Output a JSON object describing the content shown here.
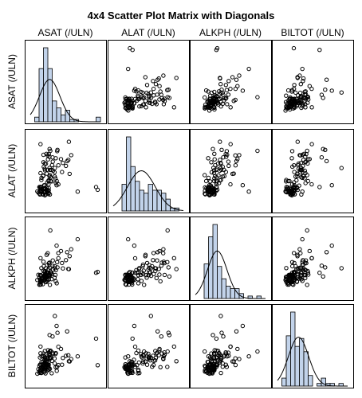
{
  "chart_data": {
    "type": "scatter",
    "title": "4x4 Scatter Plot Matrix with Diagonals",
    "variables": [
      "ASAT (/ULN)",
      "ALAT (/ULN)",
      "ALKPH (/ULN)",
      "BILTOT (/ULN)"
    ],
    "diagonal": "histogram with normal density curve",
    "ranges": [
      [
        0,
        4
      ],
      [
        0,
        4
      ],
      [
        0,
        4
      ],
      [
        0,
        4
      ]
    ],
    "observations": [
      [
        0.52,
        0.74,
        0.54,
        0.9
      ],
      [
        0.6,
        0.89,
        0.55,
        0.65
      ],
      [
        0.64,
        0.81,
        0.91,
        0.77
      ],
      [
        0.86,
        1.03,
        0.7,
        1.11
      ],
      [
        1.04,
        1.25,
        1.2,
        0.84
      ],
      [
        0.93,
        1.08,
        1.21,
        1.0
      ],
      [
        1.22,
        1.41,
        0.85,
        0.49
      ],
      [
        0.88,
        0.7,
        1.07,
        0.98
      ],
      [
        0.81,
        1.18,
        0.88,
        1.23
      ],
      [
        1.04,
        1.43,
        1.07,
        0.68
      ],
      [
        0.96,
        1.36,
        1.2,
        0.94
      ],
      [
        1.46,
        1.32,
        1.35,
        1.6
      ],
      [
        0.4,
        0.86,
        0.8,
        0.46
      ],
      [
        0.83,
        0.64,
        0.81,
        0.82
      ],
      [
        0.46,
        0.79,
        1.09,
        0.71
      ],
      [
        0.6,
        1.11,
        0.77,
        0.95
      ],
      [
        1.03,
        0.71,
        1.05,
        0.85
      ],
      [
        0.55,
        0.69,
        0.84,
        1.36
      ],
      [
        0.52,
        1.1,
        0.92,
        0.51
      ],
      [
        0.54,
        1.08,
        0.55,
        0.58
      ],
      [
        0.56,
        0.85,
        1.08,
        0.65
      ],
      [
        0.83,
        0.83,
        1.01,
        0.71
      ],
      [
        0.6,
        0.98,
        0.69,
        0.51
      ],
      [
        0.79,
        0.81,
        0.99,
        0.54
      ],
      [
        0.92,
        0.94,
        0.69,
        0.85
      ],
      [
        0.81,
        0.88,
        1.05,
        0.71
      ],
      [
        1.12,
        0.69,
        1.09,
        0.73
      ],
      [
        0.62,
        0.91,
        1.05,
        0.82
      ],
      [
        0.66,
        0.84,
        0.74,
        0.71
      ],
      [
        0.72,
        0.7,
        0.57,
        0.85
      ],
      [
        0.87,
        0.83,
        0.97,
        0.48
      ],
      [
        0.94,
        0.94,
        0.95,
        1.15
      ],
      [
        0.7,
        0.7,
        0.91,
        0.98
      ],
      [
        1.05,
        1.05,
        0.82,
        0.7
      ],
      [
        0.57,
        1.05,
        0.63,
        0.57
      ],
      [
        1.05,
        0.92,
        0.85,
        0.96
      ],
      [
        0.79,
        1.2,
        0.8,
        0.96
      ],
      [
        1.06,
        0.78,
        1.0,
        0.77
      ],
      [
        0.82,
        1.06,
        0.96,
        0.9
      ],
      [
        0.58,
        0.88,
        0.69,
        0.74
      ],
      [
        1.01,
        0.88,
        1.18,
        0.95
      ],
      [
        0.56,
        0.91,
        0.8,
        0.97
      ],
      [
        0.93,
        0.9,
        0.85,
        0.98
      ],
      [
        0.75,
        0.69,
        0.77,
        0.77
      ],
      [
        0.93,
        0.95,
        0.97,
        0.93
      ],
      [
        0.64,
        1.08,
        0.73,
        1.11
      ],
      [
        0.85,
        0.99,
        1.09,
        0.78
      ],
      [
        0.84,
        1.03,
        1.0,
        1.0
      ],
      [
        0.83,
        1.0,
        0.93,
        0.63
      ],
      [
        0.96,
        0.83,
        0.77,
        0.63
      ],
      [
        1.15,
        1.43,
        1.21,
        1.74
      ],
      [
        1.51,
        1.43,
        0.62,
        0.62
      ],
      [
        0.63,
        1.49,
        1.46,
        0.5
      ],
      [
        0.64,
        1.61,
        0.75,
        1.42
      ],
      [
        1.04,
        1.47,
        1.4,
        1.08
      ],
      [
        1.43,
        1.58,
        1.08,
        1.55
      ],
      [
        1.16,
        1.64,
        1.21,
        1.36
      ],
      [
        1.38,
        1.91,
        0.93,
        1.3
      ],
      [
        1.12,
        1.76,
        0.53,
        1.69
      ],
      [
        0.74,
        1.74,
        1.32,
        1.46
      ],
      [
        1.39,
        1.68,
        1.56,
        1.03
      ],
      [
        0.58,
        1.87,
        1.07,
        1.59
      ],
      [
        0.84,
        2.02,
        1.07,
        1.35
      ],
      [
        1.1,
        2.16,
        1.03,
        1.34
      ],
      [
        0.73,
        1.71,
        1.12,
        1.13
      ],
      [
        1.09,
        1.7,
        1.65,
        1.48
      ],
      [
        0.96,
        2.05,
        1.63,
        1.41
      ],
      [
        0.82,
        2.11,
        1.24,
        1.2
      ],
      [
        0.77,
        2.22,
        1.56,
        0.85
      ],
      [
        1.12,
        2.05,
        1.48,
        1.29
      ],
      [
        0.75,
        2.47,
        0.91,
        1.58
      ],
      [
        1.2,
        2.05,
        1.2,
        1.34
      ],
      [
        0.83,
        2.4,
        1.3,
        1.72
      ],
      [
        1.24,
        2.31,
        1.13,
        1.17
      ],
      [
        1.01,
        2.63,
        1.1,
        1.76
      ],
      [
        1.81,
        1.93,
        1.74,
        0.96
      ],
      [
        0.75,
        2.88,
        1.81,
        1.42
      ],
      [
        0.89,
        2.39,
        1.45,
        1.2
      ],
      [
        1.3,
        2.0,
        1.38,
        1.56
      ],
      [
        1.06,
        2.92,
        1.73,
        1.64
      ],
      [
        1.28,
        2.5,
        1.88,
        1.62
      ],
      [
        2.24,
        1.83,
        2.12,
        1.14
      ],
      [
        1.86,
        2.43,
        1.44,
        1.33
      ],
      [
        2.17,
        2.6,
        1.41,
        1.48
      ],
      [
        0.99,
        2.85,
        2.28,
        1.31
      ],
      [
        1.45,
        2.69,
        0.73,
        0.82
      ],
      [
        0.92,
        2.93,
        1.08,
        1.52
      ],
      [
        1.6,
        2.3,
        2.29,
        0.94
      ],
      [
        1.09,
        2.77,
        1.76,
        1.58
      ],
      [
        0.93,
        1.84,
        2.19,
        1.13
      ],
      [
        2.1,
        2.53,
        2.34,
        2.8
      ],
      [
        1.55,
        3.15,
        1.5,
        2.72
      ],
      [
        1.53,
        3.08,
        1.79,
        0.84
      ],
      [
        1.6,
        1.25,
        2.0,
        1.95
      ],
      [
        2.33,
        2.86,
        2.5,
        1.27
      ],
      [
        1.75,
        2.64,
        2.4,
        1.83
      ],
      [
        2.03,
        2.27,
        1.9,
        1.45
      ],
      [
        1.27,
        2.74,
        1.59,
        2.52
      ],
      [
        0.58,
        3.47,
        2.01,
        1.96
      ],
      [
        3.84,
        0.95,
        1.25,
        0.93
      ],
      [
        1.14,
        3.1,
        3.54,
        1.69
      ],
      [
        1.4,
        2.15,
        1.45,
        3.65
      ],
      [
        2.7,
        0.85,
        3.05,
        1.42
      ],
      [
        1.5,
        1.2,
        2.7,
        3.1
      ],
      [
        1.1,
        3.2,
        1.0,
        2.6
      ],
      [
        3.75,
        1.1,
        1.2,
        2.4
      ],
      [
        2.2,
        3.6,
        1.4,
        1.15
      ]
    ]
  }
}
